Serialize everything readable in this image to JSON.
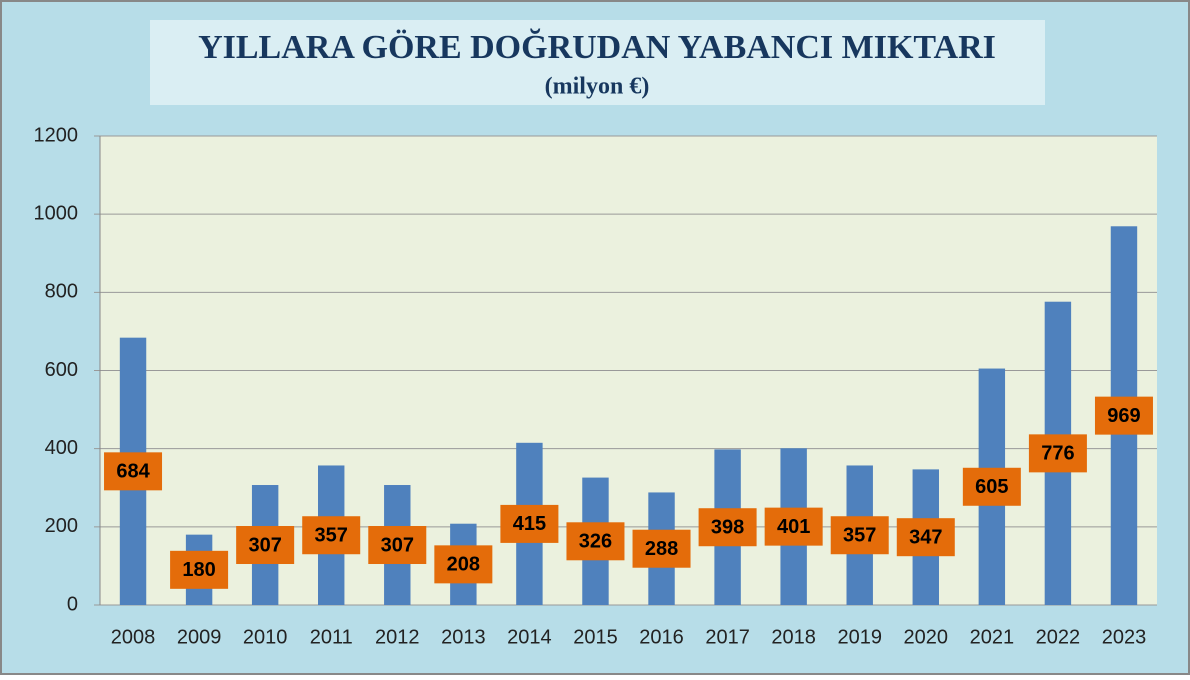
{
  "chart_data": {
    "type": "bar",
    "title": "YILLARA GÖRE DOĞRUDAN YABANCI MIKTARI",
    "subtitle": "(milyon €)",
    "categories": [
      "2008",
      "2009",
      "2010",
      "2011",
      "2012",
      "2013",
      "2014",
      "2015",
      "2016",
      "2017",
      "2018",
      "2019",
      "2020",
      "2021",
      "2022",
      "2023"
    ],
    "values": [
      684,
      180,
      307,
      357,
      307,
      208,
      415,
      326,
      288,
      398,
      401,
      357,
      347,
      605,
      776,
      969
    ],
    "color": "#4f81bd",
    "label_color": "#e46c0a",
    "ylim": [
      0,
      1200
    ],
    "yticks": [
      0,
      200,
      400,
      600,
      800,
      1000,
      1200
    ],
    "grid": true
  }
}
